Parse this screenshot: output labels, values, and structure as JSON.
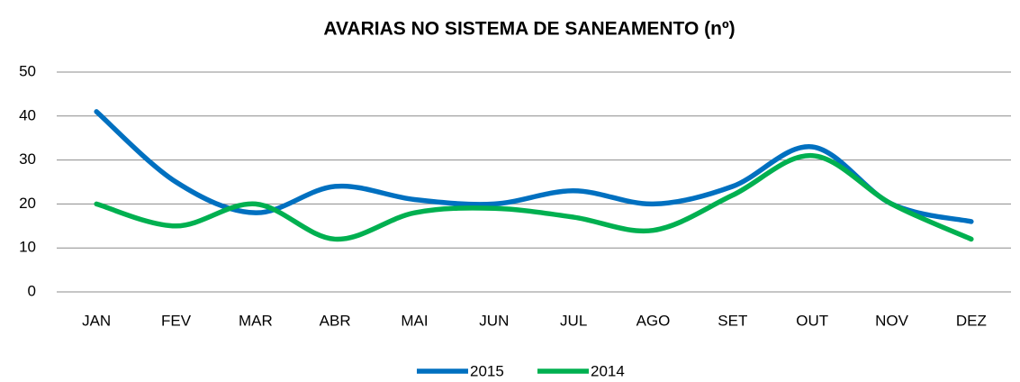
{
  "chart_data": {
    "type": "line",
    "title": "AVARIAS NO SISTEMA DE  SANEAMENTO (nº)",
    "categories": [
      "JAN",
      "FEV",
      "MAR",
      "ABR",
      "MAI",
      "JUN",
      "JUL",
      "AGO",
      "SET",
      "OUT",
      "NOV",
      "DEZ"
    ],
    "series": [
      {
        "name": "2015",
        "color": "#0070c0",
        "values": [
          41,
          25,
          18,
          24,
          21,
          20,
          23,
          20,
          24,
          33,
          20,
          16
        ]
      },
      {
        "name": "2014",
        "color": "#00b050",
        "values": [
          20,
          15,
          20,
          12,
          18,
          19,
          17,
          14,
          22,
          31,
          20,
          12
        ]
      }
    ],
    "ylim": [
      0,
      50
    ],
    "yticks": [
      0,
      10,
      20,
      30,
      40,
      50
    ],
    "grid": true,
    "smooth": true,
    "legend": "bottom"
  }
}
